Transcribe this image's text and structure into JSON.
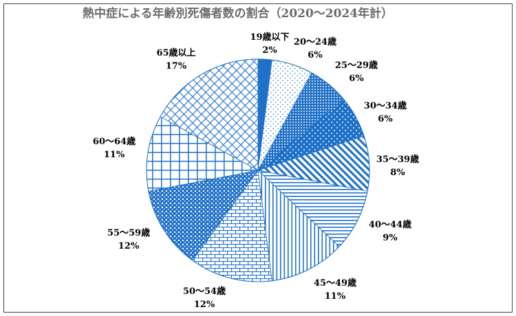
{
  "chart_data": {
    "type": "pie",
    "title": "熱中症による年齢別死傷者数の割合（2020～2024年計）",
    "categories": [
      "19歳以下",
      "20～24歳",
      "25～29歳",
      "30～34歳",
      "35～39歳",
      "40～44歳",
      "45～49歳",
      "50～54歳",
      "55～59歳",
      "60～64歳",
      "65歳以上"
    ],
    "values": [
      2,
      6,
      6,
      6,
      8,
      9,
      11,
      12,
      12,
      11,
      17
    ],
    "unit": "%",
    "fill_styles": [
      "solid",
      "sparse-dots",
      "dense-dots-on-blue",
      "dots-on-blue",
      "diagonal-stripes",
      "horizontal-stripes",
      "vertical-stripes",
      "brick",
      "checker",
      "grid",
      "diagonal-crosshatch"
    ],
    "colors": {
      "accent": "#1f70c8",
      "title": "#6b6b6b",
      "label": "#000000",
      "frame": "#444444"
    }
  }
}
